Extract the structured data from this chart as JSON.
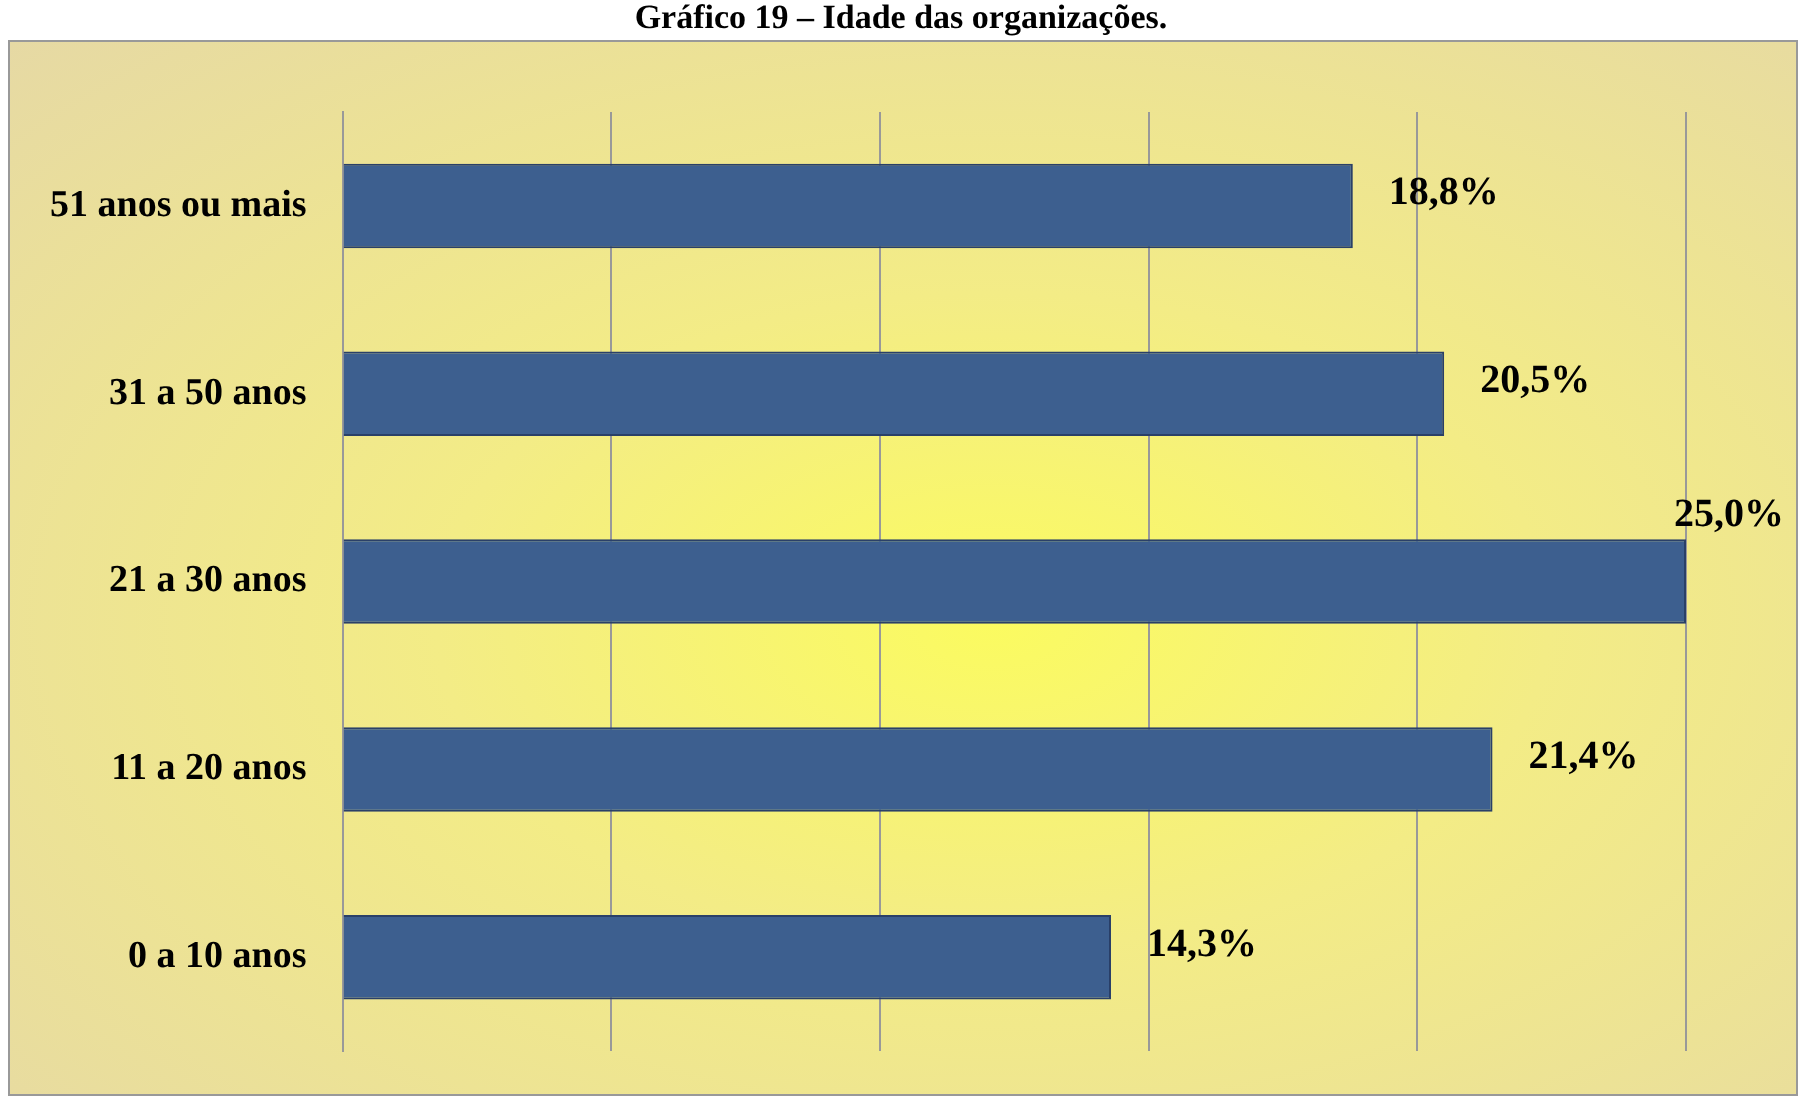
{
  "chart_data": {
    "type": "bar",
    "orientation": "horizontal",
    "title": "Gráfico 19 – Idade das organizações.",
    "categories": [
      "51 anos ou mais",
      "31 a 50 anos",
      "21 a 30 anos",
      "11 a 20 anos",
      "0 a 10 anos"
    ],
    "values": [
      18.8,
      20.5,
      25.0,
      21.4,
      14.3
    ],
    "value_labels": [
      "18,8%",
      "20,5%",
      "25,0%",
      "21,4%",
      "14,3%"
    ],
    "color": "#3d5f8f",
    "xlim": [
      0,
      25
    ],
    "xticks": [
      {
        "value": 0,
        "label": null
      },
      {
        "value": 5,
        "label": null
      },
      {
        "value": 10,
        "label": null
      },
      {
        "value": 15,
        "label": null
      },
      {
        "value": 20,
        "label": null
      },
      {
        "value": 25,
        "label": null
      }
    ],
    "tick_labels": "y",
    "grid": "x",
    "legend": false
  }
}
